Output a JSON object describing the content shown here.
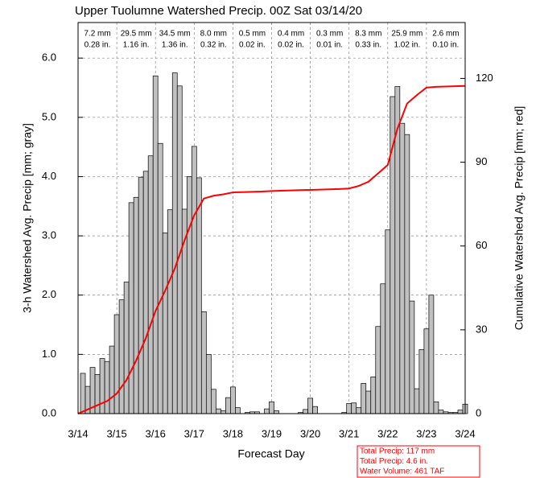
{
  "chart_data": {
    "type": "bar",
    "title": "Upper Tuolumne Watershed Precip. 00Z Sat 03/14/20",
    "xlabel": "Forecast Day",
    "ylabel": "3-h Watershed Avg. Precip [mm; gray]",
    "y2label": "Cumulative Watershed Avg. Precip [mm; red]",
    "xlim": [
      0,
      10
    ],
    "xticks": [
      {
        "value": 0,
        "label": "3/14"
      },
      {
        "value": 1,
        "label": "3/15"
      },
      {
        "value": 2,
        "label": "3/16"
      },
      {
        "value": 3,
        "label": "3/17"
      },
      {
        "value": 4,
        "label": "3/18"
      },
      {
        "value": 5,
        "label": "3/19"
      },
      {
        "value": 6,
        "label": "3/20"
      },
      {
        "value": 7,
        "label": "3/21"
      },
      {
        "value": 8,
        "label": "3/22"
      },
      {
        "value": 9,
        "label": "3/23"
      },
      {
        "value": 10,
        "label": "3/24"
      }
    ],
    "ylim": [
      0,
      6.6
    ],
    "yticks": [
      {
        "value": 0,
        "label": "0.0"
      },
      {
        "value": 1,
        "label": "1.0"
      },
      {
        "value": 2,
        "label": "2.0"
      },
      {
        "value": 3,
        "label": "3.0"
      },
      {
        "value": 4,
        "label": "4.0"
      },
      {
        "value": 5,
        "label": "5.0"
      },
      {
        "value": 6,
        "label": "6.0"
      }
    ],
    "y2lim": [
      0,
      140
    ],
    "y2ticks": [
      0,
      30,
      60,
      90,
      120
    ],
    "grid": true,
    "bars": {
      "color": "#c0c0c0",
      "x": [
        0.125,
        0.25,
        0.375,
        0.5,
        0.625,
        0.75,
        0.875,
        1,
        1.125,
        1.25,
        1.375,
        1.5,
        1.625,
        1.75,
        1.875,
        2,
        2.125,
        2.25,
        2.375,
        2.5,
        2.625,
        2.75,
        2.875,
        3,
        3.125,
        3.25,
        3.375,
        3.5,
        3.625,
        3.75,
        3.875,
        4,
        4.125,
        4.25,
        4.375,
        4.5,
        4.625,
        4.75,
        4.875,
        5,
        5.125,
        5.25,
        5.375,
        5.5,
        5.625,
        5.75,
        5.875,
        6,
        6.125,
        6.25,
        6.375,
        6.5,
        6.625,
        6.75,
        6.875,
        7,
        7.125,
        7.25,
        7.375,
        7.5,
        7.625,
        7.75,
        7.875,
        8,
        8.125,
        8.25,
        8.375,
        8.5,
        8.625,
        8.75,
        8.875,
        9,
        9.125,
        9.25,
        9.375,
        9.5,
        9.625,
        9.75,
        9.875,
        10
      ],
      "values": [
        0.68,
        0.46,
        0.78,
        0.66,
        0.93,
        0.88,
        1.14,
        1.67,
        1.92,
        2.22,
        3.56,
        3.65,
        3.99,
        4.09,
        4.35,
        5.7,
        4.56,
        3.05,
        3.44,
        5.75,
        5.53,
        3.45,
        4.0,
        4.51,
        3.98,
        1.72,
        1.0,
        0.41,
        0.08,
        0.05,
        0.27,
        0.45,
        0.1,
        0,
        0.02,
        0.03,
        0.03,
        0,
        0.08,
        0.2,
        0.05,
        0,
        0,
        0,
        0,
        0.02,
        0.07,
        0.26,
        0.12,
        0,
        0,
        0,
        0,
        0,
        0.02,
        0.17,
        0.18,
        0.1,
        0.51,
        0.38,
        0.62,
        1.47,
        2.19,
        3.1,
        5.35,
        5.52,
        4.9,
        4.71,
        1.9,
        0.42,
        1.08,
        1.43,
        2.0,
        0.2,
        0.06,
        0.03,
        0.02,
        0.02,
        0.06,
        0.16
      ]
    },
    "line": {
      "color": "#ff0000",
      "axis": "y2",
      "x": [
        0,
        0.25,
        0.5,
        0.75,
        1,
        1.25,
        1.5,
        1.75,
        2,
        2.25,
        2.5,
        2.75,
        3,
        3.25,
        3.5,
        3.75,
        4,
        4.25,
        4.5,
        4.75,
        5,
        5.25,
        5.5,
        5.75,
        6,
        6.25,
        6.5,
        6.75,
        7,
        7.25,
        7.5,
        7.75,
        8,
        8.25,
        8.5,
        8.75,
        9,
        9.25,
        9.5,
        9.75,
        10
      ],
      "values": [
        0,
        1.5,
        3,
        4.5,
        7.2,
        12,
        19,
        27,
        36.7,
        44,
        52,
        62,
        71,
        77,
        78,
        78.5,
        79.2,
        79.3,
        79.4,
        79.5,
        79.7,
        79.8,
        79.9,
        80,
        80.1,
        80.2,
        80.3,
        80.4,
        80.6,
        81.5,
        83,
        86,
        89,
        102,
        111,
        114,
        116.7,
        117,
        117.1,
        117.2,
        117.3
      ]
    },
    "daily_totals": [
      {
        "mm": "7.2 mm",
        "in": "0.28 in."
      },
      {
        "mm": "29.5 mm",
        "in": "1.16 in."
      },
      {
        "mm": "34.5 mm",
        "in": "1.36 in."
      },
      {
        "mm": "8.0 mm",
        "in": "0.32 in."
      },
      {
        "mm": "0.5 mm",
        "in": "0.02 in."
      },
      {
        "mm": "0.4 mm",
        "in": "0.02 in."
      },
      {
        "mm": "0.3 mm",
        "in": "0.01 in."
      },
      {
        "mm": "8.3 mm",
        "in": "0.33 in."
      },
      {
        "mm": "25.9 mm",
        "in": "1.02 in."
      },
      {
        "mm": "2.6 mm",
        "in": "0.10 in."
      }
    ],
    "summary": [
      "Total Precip: 117 mm",
      "Total Precip: 4.6 in.",
      "Water Volume: 461 TAF"
    ]
  }
}
